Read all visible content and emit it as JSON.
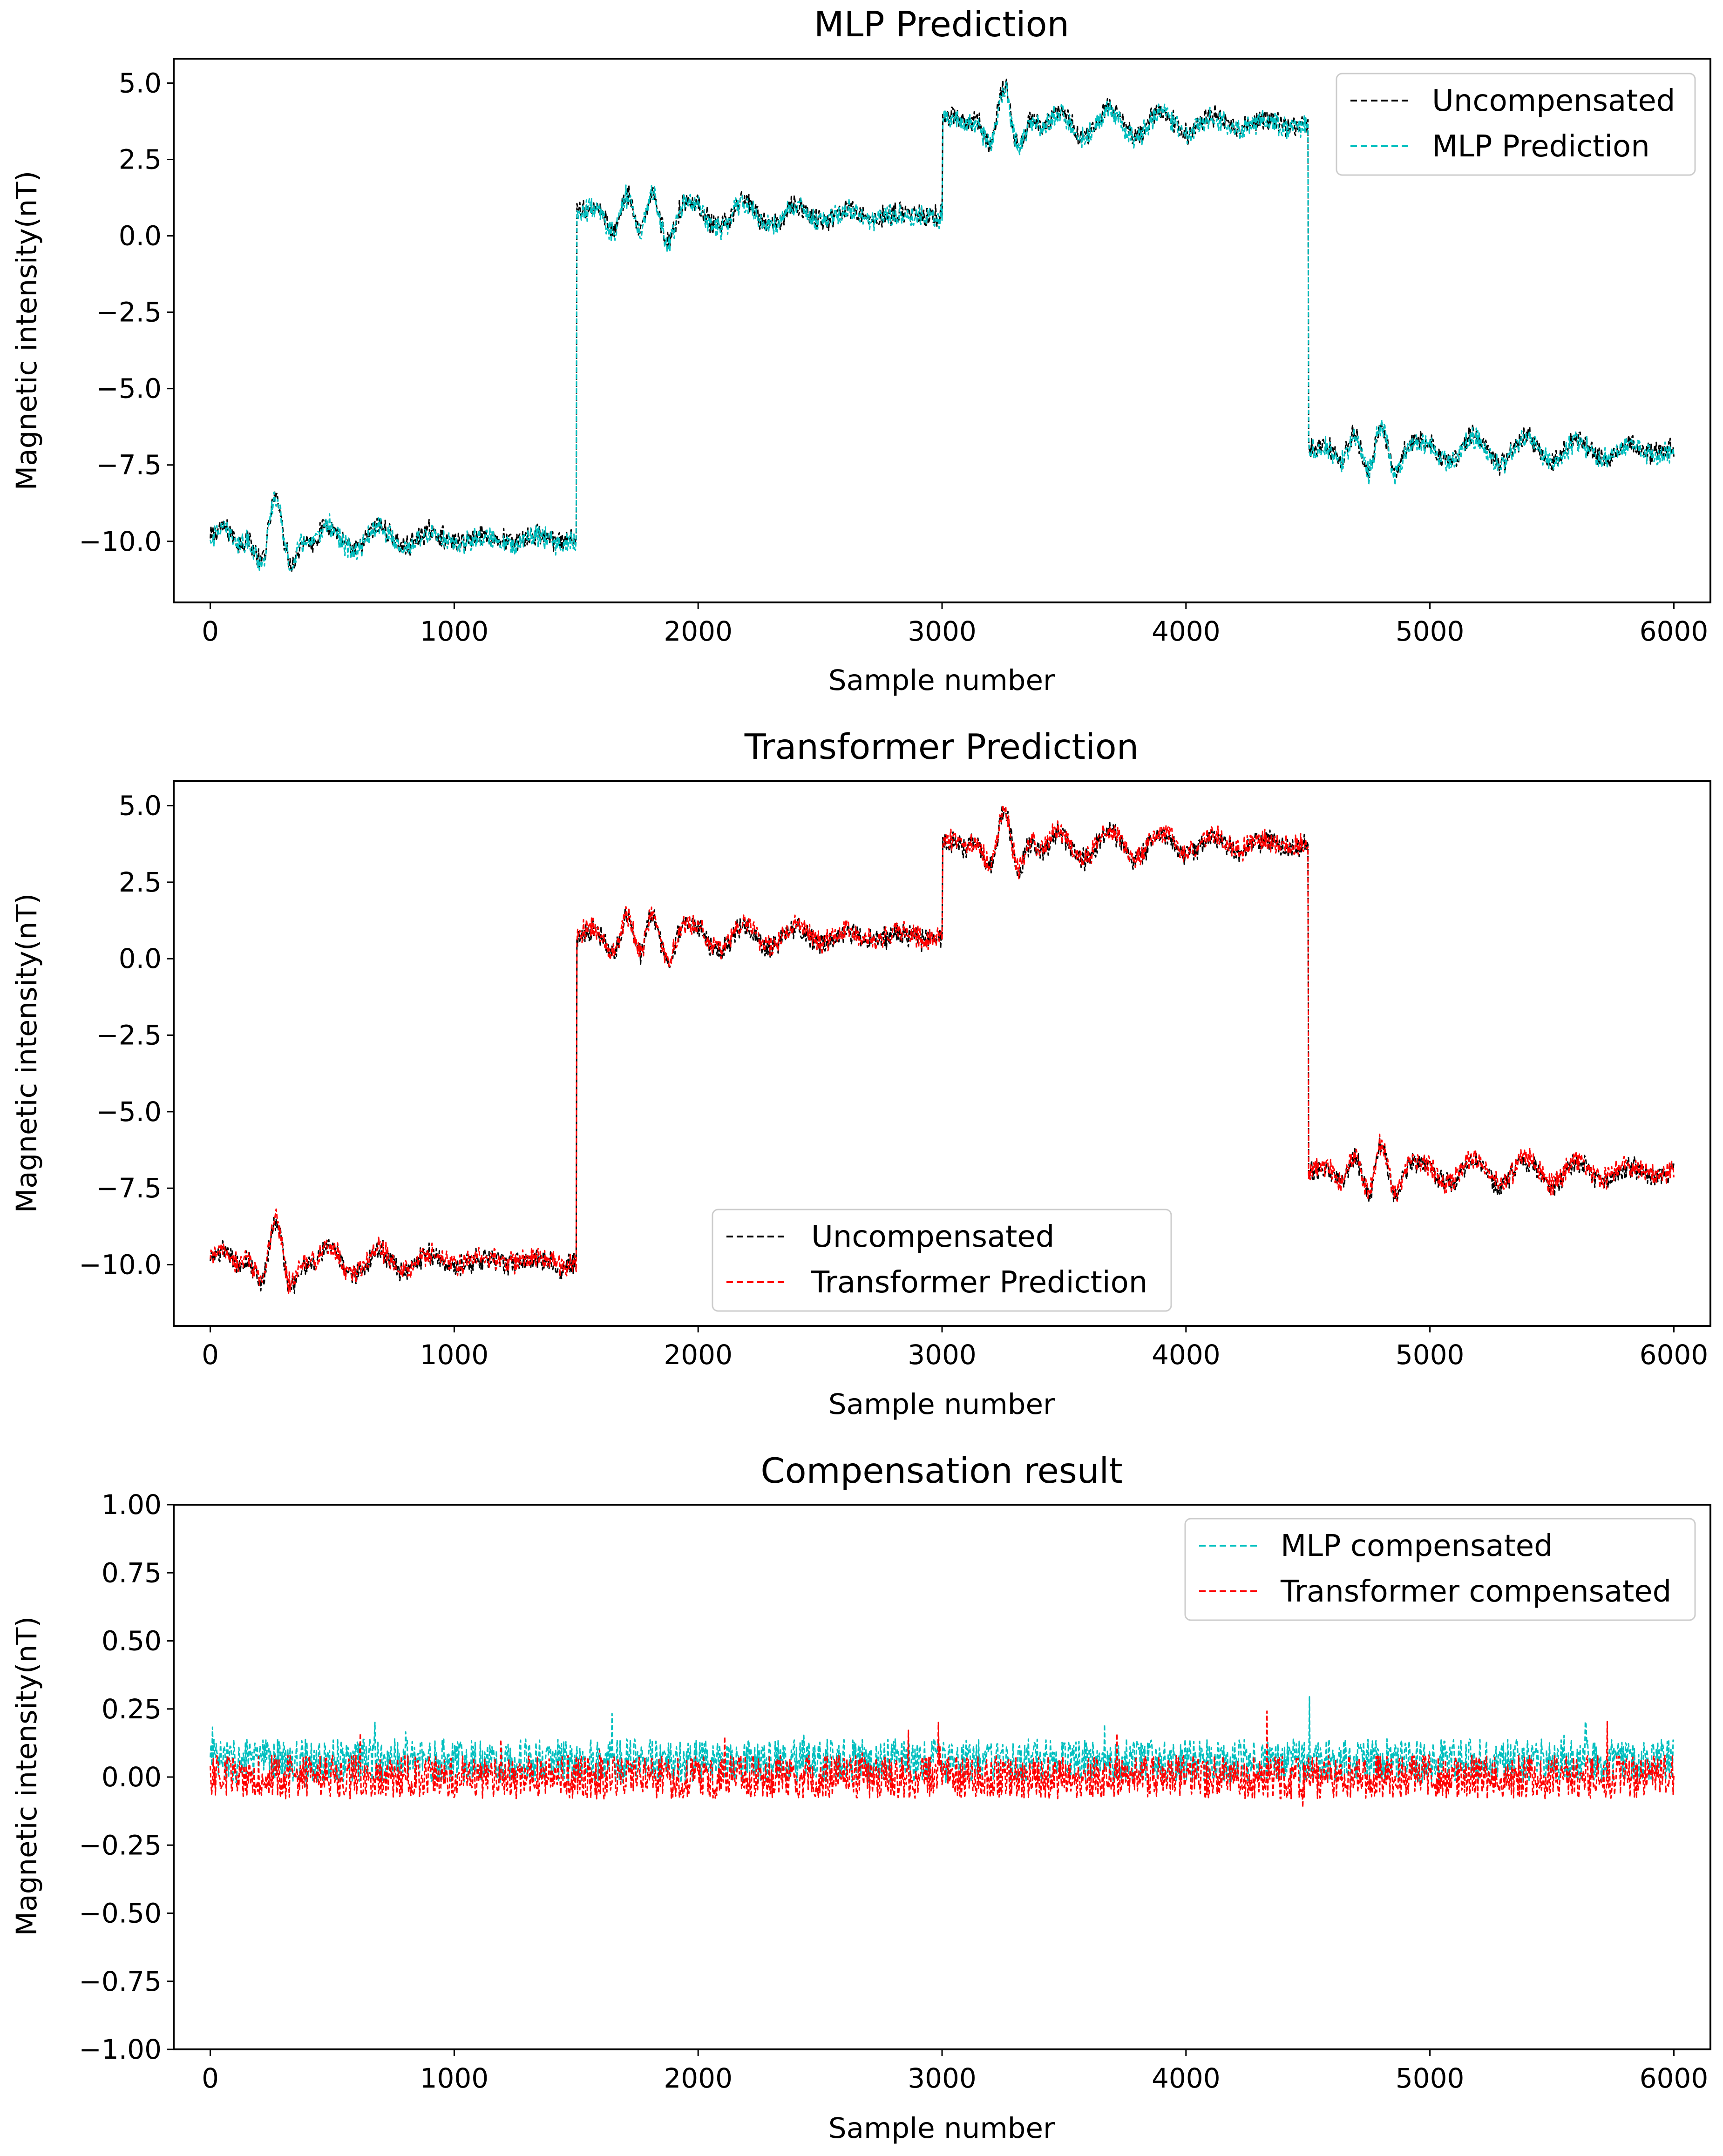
{
  "chart_data": [
    {
      "type": "line",
      "title": "MLP Prediction",
      "xlabel": "Sample number",
      "ylabel": "Magnetic intensity(nT)",
      "xlim": [
        -150,
        6150
      ],
      "ylim": [
        -12.0,
        5.8
      ],
      "xticks": [
        0,
        1000,
        2000,
        3000,
        4000,
        5000,
        6000
      ],
      "xtick_labels": [
        "0",
        "1000",
        "2000",
        "3000",
        "4000",
        "5000",
        "6000"
      ],
      "yticks": [
        5.0,
        2.5,
        0.0,
        -2.5,
        -5.0,
        -7.5,
        -10.0
      ],
      "ytick_labels": [
        "5.0",
        "2.5",
        "0.0",
        "−2.5",
        "−5.0",
        "−7.5",
        "−10.0"
      ],
      "legend_position": "top-right",
      "segment_levels": [
        {
          "x_start": 0,
          "x_end": 1500,
          "level": -9.9
        },
        {
          "x_start": 1500,
          "x_end": 3000,
          "level": 0.7
        },
        {
          "x_start": 3000,
          "x_end": 4500,
          "level": 3.7
        },
        {
          "x_start": 4500,
          "x_end": 6000,
          "level": -7.0
        }
      ],
      "series": [
        {
          "name": "Uncompensated",
          "color": "#000000",
          "style": "dashed",
          "noise_amplitude": 0.6,
          "bias": 0.0
        },
        {
          "name": "MLP Prediction",
          "color": "#00bfbf",
          "style": "dashed",
          "noise_amplitude": 0.6,
          "bias": -0.05
        }
      ]
    },
    {
      "type": "line",
      "title": "Transformer Prediction",
      "xlabel": "Sample number",
      "ylabel": "Magnetic intensity(nT)",
      "xlim": [
        -150,
        6150
      ],
      "ylim": [
        -12.0,
        5.8
      ],
      "xticks": [
        0,
        1000,
        2000,
        3000,
        4000,
        5000,
        6000
      ],
      "xtick_labels": [
        "0",
        "1000",
        "2000",
        "3000",
        "4000",
        "5000",
        "6000"
      ],
      "yticks": [
        5.0,
        2.5,
        0.0,
        -2.5,
        -5.0,
        -7.5,
        -10.0
      ],
      "ytick_labels": [
        "5.0",
        "2.5",
        "0.0",
        "−2.5",
        "−5.0",
        "−7.5",
        "−10.0"
      ],
      "legend_position": "lower-center",
      "segment_levels": [
        {
          "x_start": 0,
          "x_end": 1500,
          "level": -9.9
        },
        {
          "x_start": 1500,
          "x_end": 3000,
          "level": 0.7
        },
        {
          "x_start": 3000,
          "x_end": 4500,
          "level": 3.7
        },
        {
          "x_start": 4500,
          "x_end": 6000,
          "level": -7.0
        }
      ],
      "series": [
        {
          "name": "Uncompensated",
          "color": "#000000",
          "style": "dashed",
          "noise_amplitude": 0.6,
          "bias": 0.0
        },
        {
          "name": "Transformer Prediction",
          "color": "#ff0000",
          "style": "dashed",
          "noise_amplitude": 0.6,
          "bias": 0.05
        }
      ]
    },
    {
      "type": "line",
      "title": "Compensation result",
      "xlabel": "Sample number",
      "ylabel": "Magnetic intensity(nT)",
      "xlim": [
        -150,
        6150
      ],
      "ylim": [
        -1.0,
        1.0
      ],
      "xticks": [
        0,
        1000,
        2000,
        3000,
        4000,
        5000,
        6000
      ],
      "xtick_labels": [
        "0",
        "1000",
        "2000",
        "3000",
        "4000",
        "5000",
        "6000"
      ],
      "yticks": [
        1.0,
        0.75,
        0.5,
        0.25,
        0.0,
        -0.25,
        -0.5,
        -0.75,
        -1.0
      ],
      "ytick_labels": [
        "1.00",
        "0.75",
        "0.50",
        "0.25",
        "0.00",
        "−0.25",
        "−0.50",
        "−0.75",
        "−1.00"
      ],
      "legend_position": "top-right",
      "series": [
        {
          "name": "MLP compensated",
          "color": "#00bfbf",
          "style": "dashed",
          "mean": 0.06,
          "noise_amplitude": 0.08
        },
        {
          "name": "Transformer compensated",
          "color": "#ff0000",
          "style": "dashed",
          "mean": 0.0,
          "noise_amplitude": 0.08
        }
      ]
    }
  ]
}
